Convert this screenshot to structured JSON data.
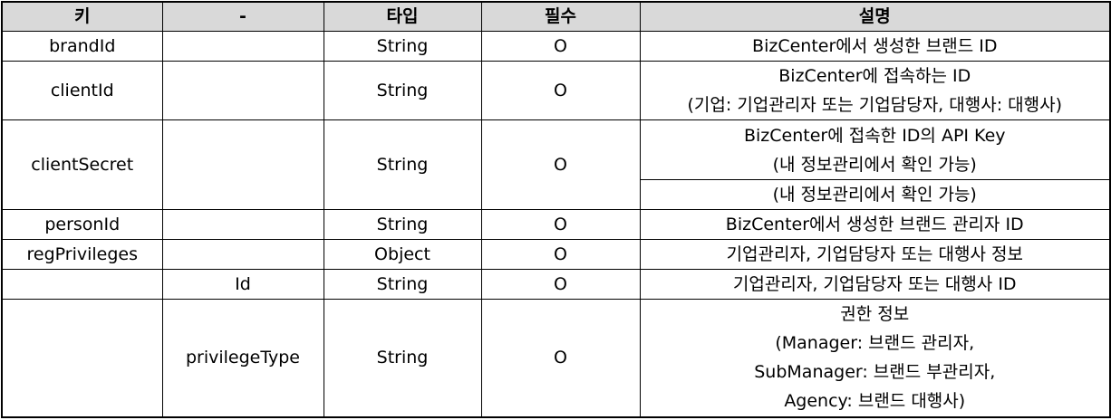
{
  "headers": [
    "키",
    "-",
    "타입",
    "필수",
    "설명"
  ],
  "rows": {
    "brandId": {
      "key": "brandId",
      "sub": "",
      "type": "String",
      "required": "O",
      "desc": "BizCenter에서 생성한 브랜드 ID"
    },
    "clientId": {
      "key": "clientId",
      "sub": "",
      "type": "String",
      "required": "O",
      "desc": [
        "BizCenter에 접속하는 ID",
        "(기업: 기업관리자 또는 기업담당자, 대행사: 대행사)"
      ]
    },
    "clientSecret": {
      "key": "clientSecret",
      "sub": "",
      "type": "String",
      "required": "O",
      "desc": [
        "BizCenter에 접속한 ID의 API Key",
        "(내 정보관리에서 확인 가능)"
      ],
      "desc2": "(내 정보관리에서 확인 가능)"
    },
    "personId": {
      "key": "personId",
      "sub": "",
      "type": "String",
      "required": "O",
      "desc": "BizCenter에서 생성한 브랜드 관리자 ID"
    },
    "regPrivileges": {
      "key": "regPrivileges",
      "sub": "",
      "type": "Object",
      "required": "O",
      "desc": "기업관리자, 기업담당자 또는 대행사 정보"
    },
    "id": {
      "key": "",
      "sub": "Id",
      "type": "String",
      "required": "O",
      "desc": "기업관리자, 기업담당자 또는 대행사 ID"
    },
    "privilegeType": {
      "key": "",
      "sub": "privilegeType",
      "type": "String",
      "required": "O",
      "desc": [
        "권한 정보",
        "(Manager: 브랜드 관리자,",
        "SubManager: 브랜드 부관리자,",
        "Agency: 브랜드 대행사)"
      ]
    }
  }
}
